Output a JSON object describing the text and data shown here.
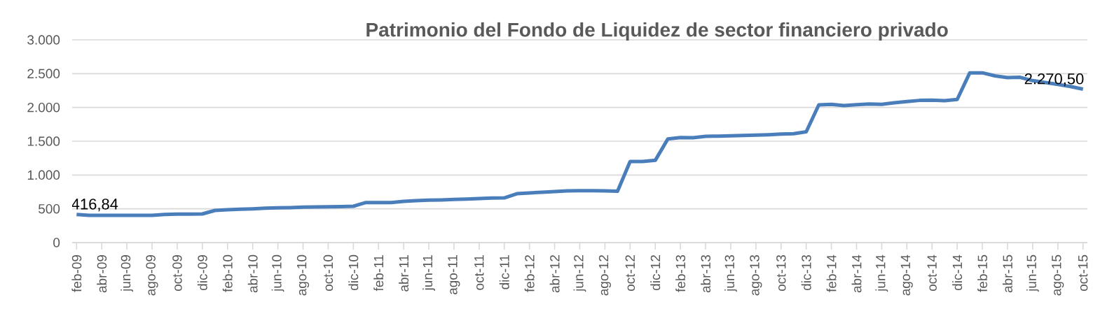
{
  "chart_data": {
    "type": "line",
    "title": "Patrimonio del Fondo de Liquidez de sector financiero privado",
    "categories": [
      "feb-09",
      null,
      "abr-09",
      null,
      "jun-09",
      null,
      "ago-09",
      null,
      "oct-09",
      null,
      "dic-09",
      null,
      "feb-10",
      null,
      "abr-10",
      null,
      "jun-10",
      null,
      "ago-10",
      null,
      "oct-10",
      null,
      "dic-10",
      null,
      "feb-11",
      null,
      "abr-11",
      null,
      "jun-11",
      null,
      "ago-11",
      null,
      "oct-11",
      null,
      "dic-11",
      null,
      "feb-12",
      null,
      "abr-12",
      null,
      "jun-12",
      null,
      "ago-12",
      null,
      "oct-12",
      null,
      "dic-12",
      null,
      "feb-13",
      null,
      "abr-13",
      null,
      "jun-13",
      null,
      "ago-13",
      null,
      "oct-13",
      null,
      "dic-13",
      null,
      "feb-14",
      null,
      "abr-14",
      null,
      "jun-14",
      null,
      "ago-14",
      null,
      "oct-14",
      null,
      "dic-14",
      null,
      "feb-15",
      null,
      "abr-15",
      null,
      "jun-15",
      null,
      "ago-15",
      null,
      "oct-15"
    ],
    "series": [
      {
        "color": "#4a7ebb",
        "values": [
          416.84,
          403,
          403,
          403,
          403,
          403,
          403,
          417,
          421,
          421,
          424,
          476,
          486,
          493,
          500,
          510,
          514,
          517,
          524,
          528,
          531,
          534,
          538,
          593,
          593,
          593,
          610,
          621,
          628,
          631,
          638,
          645,
          652,
          659,
          662,
          724,
          735,
          745,
          755,
          766,
          768,
          767,
          765,
          760,
          1200,
          1200,
          1217,
          1534,
          1555,
          1552,
          1572,
          1576,
          1580,
          1585,
          1590,
          1597,
          1605,
          1612,
          1640,
          2038,
          2045,
          2027,
          2041,
          2052,
          2045,
          2069,
          2087,
          2104,
          2107,
          2100,
          2118,
          2512,
          2512,
          2467,
          2442,
          2446,
          2397,
          2369,
          2341,
          2310,
          2270.5
        ],
        "value_labels": [
          "416,84",
          null,
          null,
          null,
          null,
          null,
          null,
          null,
          null,
          null,
          null,
          null,
          null,
          null,
          null,
          null,
          null,
          null,
          null,
          null,
          null,
          null,
          null,
          null,
          null,
          null,
          null,
          null,
          null,
          null,
          null,
          null,
          null,
          null,
          null,
          null,
          null,
          null,
          null,
          null,
          null,
          null,
          null,
          null,
          null,
          null,
          null,
          null,
          null,
          null,
          null,
          null,
          null,
          null,
          null,
          null,
          null,
          null,
          null,
          null,
          null,
          null,
          null,
          null,
          null,
          null,
          null,
          null,
          null,
          null,
          null,
          null,
          null,
          null,
          null,
          null,
          null,
          null,
          null,
          null,
          "2.270,50"
        ]
      }
    ],
    "ylim": [
      0,
      3000
    ],
    "yticks": [
      {
        "value": 0,
        "label": "0"
      },
      {
        "value": 500,
        "label": "500"
      },
      {
        "value": 1000,
        "label": "1.000"
      },
      {
        "value": 1500,
        "label": "1.500"
      },
      {
        "value": 2000,
        "label": "2.000"
      },
      {
        "value": 2500,
        "label": "2.500"
      },
      {
        "value": 3000,
        "label": "3.000"
      }
    ],
    "grid": "y",
    "marker": "none"
  }
}
